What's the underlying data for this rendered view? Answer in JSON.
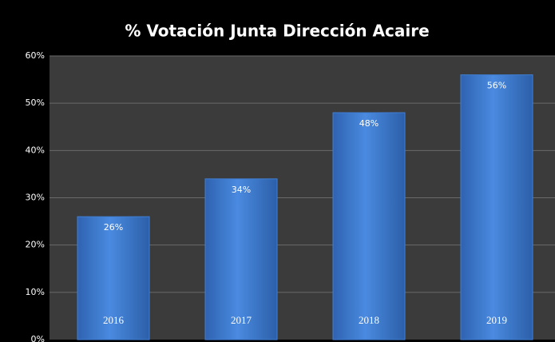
{
  "chart_data": {
    "type": "bar",
    "title": "% Votación Junta Dirección Acaire",
    "categories": [
      "2016",
      "2017",
      "2018",
      "2019"
    ],
    "values": [
      26,
      34,
      48,
      56
    ],
    "value_labels": [
      "26%",
      "34%",
      "48%",
      "56%"
    ],
    "color": "#3f7fd6",
    "ylim": [
      0,
      60
    ],
    "yticks": [
      {
        "value": 0,
        "label": "0%"
      },
      {
        "value": 10,
        "label": "10%"
      },
      {
        "value": 20,
        "label": "20%"
      },
      {
        "value": 30,
        "label": "30%"
      },
      {
        "value": 40,
        "label": "40%"
      },
      {
        "value": 50,
        "label": "50%"
      },
      {
        "value": 60,
        "label": "60%"
      }
    ],
    "grid": true
  }
}
